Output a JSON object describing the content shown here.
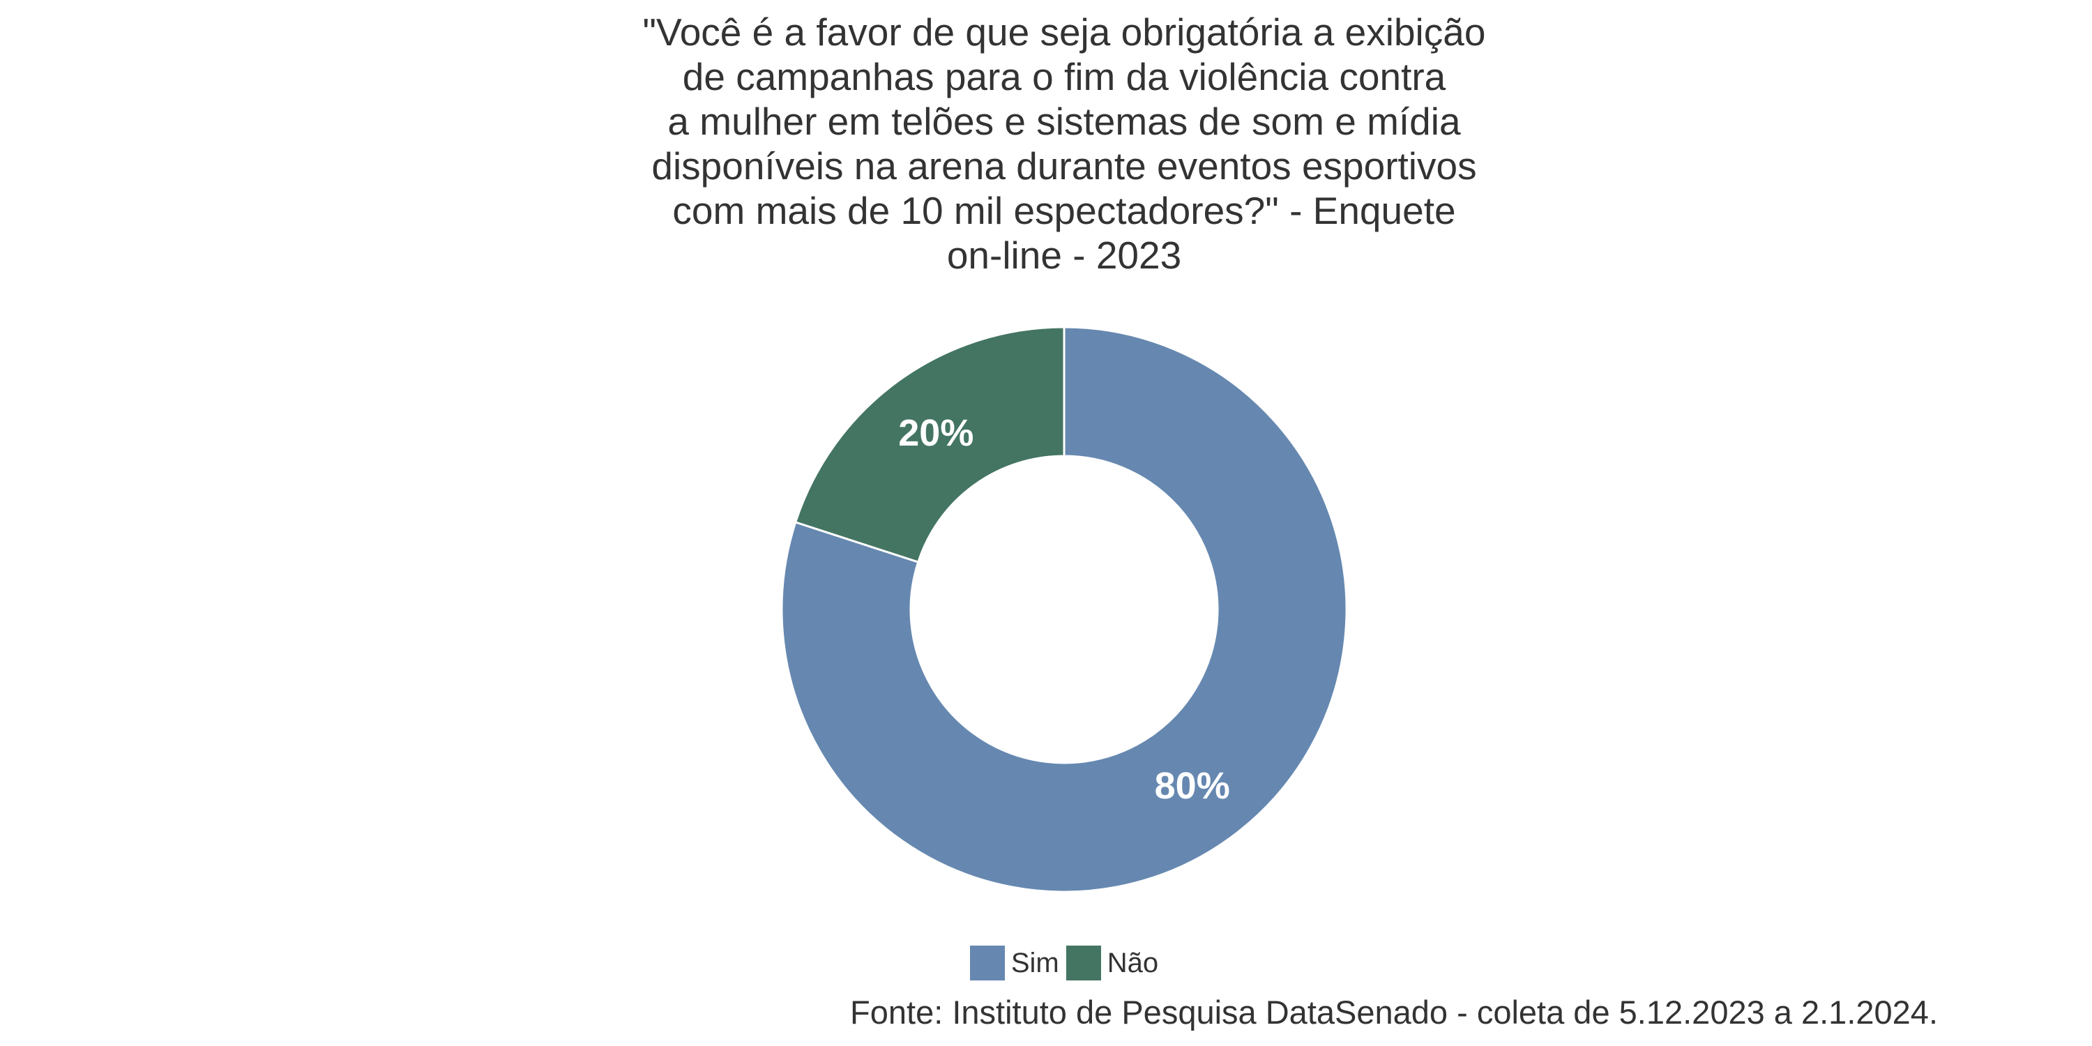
{
  "chart_data": {
    "type": "pie",
    "donut": true,
    "title_lines": [
      "\"Você é a favor de que seja obrigatória a exibição",
      "de campanhas para o fim da violência contra",
      "a mulher em telões e sistemas de som e mídia",
      "disponíveis na arena durante eventos esportivos",
      "com mais de 10 mil espectadores?\" - Enquete",
      "on-line - 2023"
    ],
    "categories": [
      "Sim",
      "Não"
    ],
    "values": [
      80,
      20
    ],
    "value_labels": [
      "80%",
      "20%"
    ],
    "colors": [
      "#6688b0",
      "#447563"
    ],
    "legend_position": "bottom",
    "caption": "Fonte: Instituto de Pesquisa DataSenado - coleta de 5.12.2023 a 2.1.2024."
  }
}
